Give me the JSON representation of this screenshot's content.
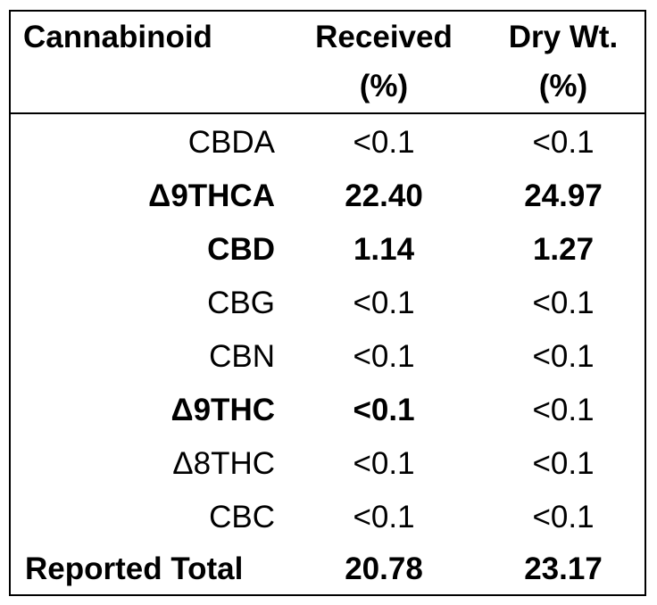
{
  "table": {
    "headers": {
      "cannabinoid": "Cannabinoid",
      "received_line1": "Received",
      "received_line2": "(%)",
      "dry_line1": "Dry Wt.",
      "dry_line2": "(%)"
    },
    "rows": [
      {
        "name": "CBDA",
        "received": "<0.1",
        "dry": "<0.1"
      },
      {
        "name": "Δ9THCA",
        "received": "22.40",
        "dry": "24.97"
      },
      {
        "name": "CBD",
        "received": "1.14",
        "dry": "1.27"
      },
      {
        "name": "CBG",
        "received": "<0.1",
        "dry": "<0.1"
      },
      {
        "name": "CBN",
        "received": "<0.1",
        "dry": "<0.1"
      },
      {
        "name": "Δ9THC",
        "received": "<0.1",
        "dry": "<0.1"
      },
      {
        "name": "Δ8THC",
        "received": "<0.1",
        "dry": "<0.1"
      },
      {
        "name": "CBC",
        "received": "<0.1",
        "dry": "<0.1"
      },
      {
        "name": "Reported Total",
        "received": "20.78",
        "dry": "23.17"
      }
    ]
  }
}
